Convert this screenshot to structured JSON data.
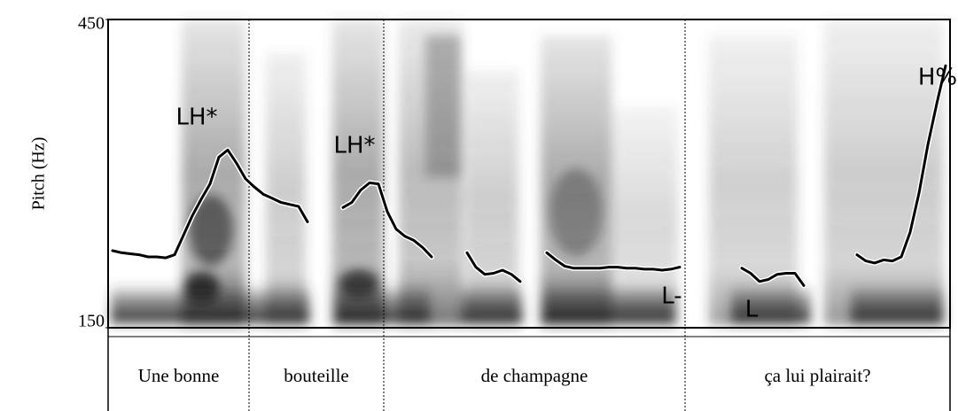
{
  "chart_data": {
    "type": "line",
    "ylabel": "Pitch (Hz)",
    "ylim": [
      150,
      450
    ],
    "yticks": [
      150,
      450
    ],
    "series": [
      {
        "name": null,
        "color": "#000000",
        "values": [
          225,
          223,
          222,
          221,
          219,
          219,
          218,
          221,
          240,
          259,
          275,
          290,
          316,
          323,
          310,
          295,
          287,
          280,
          276,
          272,
          270,
          268,
          253,
          null,
          null,
          null,
          267,
          272,
          284,
          291,
          290,
          263,
          246,
          239,
          235,
          228,
          219,
          null,
          null,
          null,
          223,
          209,
          202,
          203,
          206,
          202,
          195,
          null,
          null,
          223,
          216,
          210,
          208,
          208,
          208,
          208,
          209,
          209,
          208,
          208,
          207,
          207,
          206,
          207,
          209,
          null,
          null,
          null,
          null,
          null,
          null,
          208,
          203,
          195,
          197,
          202,
          203,
          203,
          191,
          null,
          null,
          null,
          null,
          null,
          221,
          215,
          213,
          216,
          215,
          219,
          243,
          281,
          328,
          368,
          405
        ]
      }
    ],
    "annotations": [
      "LH*",
      "LH*",
      "L-",
      "L",
      "H%"
    ],
    "words": [
      "Une bonne",
      "bouteille",
      "de champagne",
      "ça lui plairait?"
    ]
  }
}
